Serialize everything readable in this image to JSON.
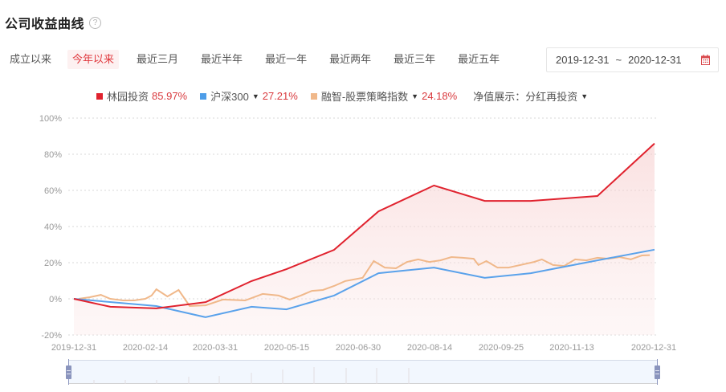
{
  "header": {
    "title": "公司收益曲线",
    "help_icon": "question-circle-icon"
  },
  "range_tabs": [
    {
      "label": "成立以来",
      "active": false
    },
    {
      "label": "今年以来",
      "active": true
    },
    {
      "label": "最近三月",
      "active": false
    },
    {
      "label": "最近半年",
      "active": false
    },
    {
      "label": "最近一年",
      "active": false
    },
    {
      "label": "最近两年",
      "active": false
    },
    {
      "label": "最近三年",
      "active": false
    },
    {
      "label": "最近五年",
      "active": false
    }
  ],
  "date_range": {
    "start": "2019-12-31",
    "separator": "~",
    "end": "2020-12-31",
    "icon": "calendar-icon"
  },
  "legend": {
    "items": [
      {
        "name": "林园投资",
        "value": "85.97%",
        "color": "#e0222e",
        "dropdown": false
      },
      {
        "name": "沪深300",
        "value": "27.21%",
        "color": "#4d9de8",
        "dropdown": true
      },
      {
        "name": "融智-股票策略指数",
        "value": "24.18%",
        "color": "#f0b88a",
        "dropdown": true
      }
    ],
    "nav_display_label": "净值展示：",
    "nav_display_value": "分红再投资"
  },
  "colors": {
    "accent": "#e0393e",
    "active_tab_bg": "#fdf1f1",
    "fill": "#fbe3e3",
    "handle": "#8a94bd"
  },
  "chart_data": {
    "type": "line",
    "title": "公司收益曲线",
    "xlabel": "",
    "ylabel": "",
    "ylim": [
      -20,
      100
    ],
    "yticks": [
      "100%",
      "80%",
      "60%",
      "40%",
      "20%",
      "0%",
      "-20%"
    ],
    "xticks": [
      "2019-12-31",
      "2020-02-14",
      "2020-03-31",
      "2020-05-15",
      "2020-06-30",
      "2020-08-14",
      "2020-09-25",
      "2020-11-13",
      "2020-12-31"
    ],
    "grid": true,
    "legend_position": "top",
    "series": [
      {
        "name": "林园投资",
        "final_return": "85.97%",
        "color": "#e0222e",
        "area_fill": true,
        "points": [
          [
            "2019-12-31",
            0
          ],
          [
            "2020-01-23",
            -4.4
          ],
          [
            "2020-02-21",
            -5.3
          ],
          [
            "2020-03-23",
            -1.8
          ],
          [
            "2020-04-21",
            9.8
          ],
          [
            "2020-05-13",
            16.4
          ],
          [
            "2020-06-12",
            27.1
          ],
          [
            "2020-07-10",
            48.4
          ],
          [
            "2020-08-14",
            62.7
          ],
          [
            "2020-09-15",
            54.2
          ],
          [
            "2020-10-14",
            54.2
          ],
          [
            "2020-11-25",
            56.9
          ],
          [
            "2020-12-31",
            85.97
          ]
        ]
      },
      {
        "name": "沪深300",
        "final_return": "27.21%",
        "color": "#4d9de8",
        "area_fill": false,
        "points": [
          [
            "2019-12-31",
            0
          ],
          [
            "2020-02-21",
            -4.0
          ],
          [
            "2020-03-23",
            -10.2
          ],
          [
            "2020-04-21",
            -4.4
          ],
          [
            "2020-05-13",
            -5.8
          ],
          [
            "2020-06-12",
            1.8
          ],
          [
            "2020-07-10",
            14.2
          ],
          [
            "2020-08-14",
            17.3
          ],
          [
            "2020-09-15",
            11.6
          ],
          [
            "2020-10-14",
            14.2
          ],
          [
            "2020-11-25",
            21.3
          ],
          [
            "2020-12-31",
            27.21
          ]
        ]
      },
      {
        "name": "融智-股票策略指数",
        "final_return": "24.18%",
        "color": "#f0b88a",
        "area_fill": false,
        "points": [
          [
            "2020-01-03",
            0
          ],
          [
            "2020-01-10",
            0.9
          ],
          [
            "2020-01-17",
            2.2
          ],
          [
            "2020-01-23",
            0
          ],
          [
            "2020-01-31",
            -0.9
          ],
          [
            "2020-02-07",
            -0.9
          ],
          [
            "2020-02-14",
            0
          ],
          [
            "2020-02-18",
            1.8
          ],
          [
            "2020-02-21",
            5.3
          ],
          [
            "2020-02-28",
            1.3
          ],
          [
            "2020-03-06",
            4.9
          ],
          [
            "2020-03-13",
            -4.0
          ],
          [
            "2020-03-23",
            -3.6
          ],
          [
            "2020-04-03",
            -0.4
          ],
          [
            "2020-04-17",
            -0.9
          ],
          [
            "2020-04-28",
            2.7
          ],
          [
            "2020-05-08",
            1.8
          ],
          [
            "2020-05-15",
            -0.4
          ],
          [
            "2020-05-22",
            1.8
          ],
          [
            "2020-05-29",
            4.4
          ],
          [
            "2020-06-05",
            4.9
          ],
          [
            "2020-06-12",
            7.1
          ],
          [
            "2020-06-19",
            9.8
          ],
          [
            "2020-06-30",
            11.6
          ],
          [
            "2020-07-07",
            20.9
          ],
          [
            "2020-07-14",
            17.3
          ],
          [
            "2020-07-21",
            16.9
          ],
          [
            "2020-07-28",
            20.4
          ],
          [
            "2020-08-04",
            21.8
          ],
          [
            "2020-08-11",
            20.4
          ],
          [
            "2020-08-18",
            21.3
          ],
          [
            "2020-08-25",
            23.1
          ],
          [
            "2020-09-01",
            22.7
          ],
          [
            "2020-09-08",
            22.2
          ],
          [
            "2020-09-11",
            18.7
          ],
          [
            "2020-09-16",
            20.9
          ],
          [
            "2020-09-23",
            17.3
          ],
          [
            "2020-09-30",
            17.3
          ],
          [
            "2020-10-16",
            20.4
          ],
          [
            "2020-10-21",
            21.8
          ],
          [
            "2020-10-28",
            18.7
          ],
          [
            "2020-11-04",
            18.2
          ],
          [
            "2020-11-11",
            21.8
          ],
          [
            "2020-11-18",
            21.3
          ],
          [
            "2020-11-25",
            22.7
          ],
          [
            "2020-12-02",
            22.2
          ],
          [
            "2020-12-09",
            23.1
          ],
          [
            "2020-12-16",
            21.8
          ],
          [
            "2020-12-23",
            24.0
          ],
          [
            "2020-12-28",
            24.18
          ]
        ]
      }
    ]
  },
  "data_zoom": {
    "start": "2019-12-31",
    "end": "2020-12-31"
  }
}
